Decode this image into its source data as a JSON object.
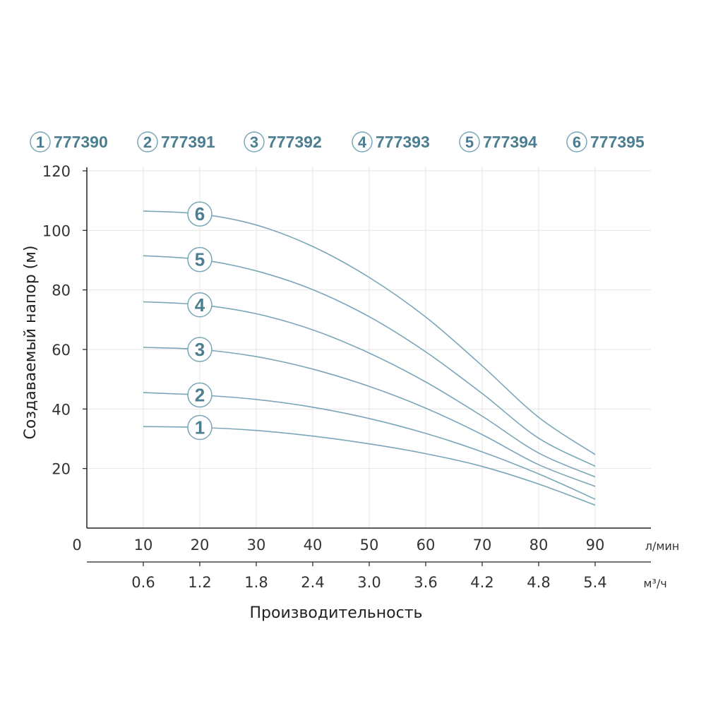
{
  "chart_data": {
    "type": "line",
    "legend": [
      {
        "num": "1",
        "code": "777390"
      },
      {
        "num": "2",
        "code": "777391"
      },
      {
        "num": "3",
        "code": "777392"
      },
      {
        "num": "4",
        "code": "777393"
      },
      {
        "num": "5",
        "code": "777394"
      },
      {
        "num": "6",
        "code": "777395"
      }
    ],
    "ylabel": "Создаваемый напор (м)",
    "xlabel": "Производительность",
    "origin_label": "0",
    "x_unit_lmin": "л/мин",
    "x_unit_m3h": "м³/ч",
    "yticks": [
      "20",
      "40",
      "60",
      "80",
      "100",
      "120"
    ],
    "xticks_lmin": [
      "10",
      "20",
      "30",
      "40",
      "50",
      "60",
      "70",
      "80",
      "90"
    ],
    "xticks_m3h": [
      "0.6",
      "1.2",
      "1.8",
      "2.4",
      "3.0",
      "3.6",
      "4.2",
      "4.8",
      "5.4"
    ],
    "xlim": [
      0,
      90
    ],
    "ylim": [
      0,
      120
    ],
    "x": [
      10,
      20,
      30,
      40,
      50,
      60,
      70,
      80,
      90
    ],
    "series": [
      {
        "label": "1",
        "values": [
          34.1,
          33.8,
          32.8,
          30.9,
          28.3,
          25.0,
          20.7,
          14.8,
          7.7
        ]
      },
      {
        "label": "2",
        "values": [
          45.5,
          44.7,
          43.2,
          40.6,
          36.8,
          31.8,
          25.6,
          18.2,
          9.7
        ]
      },
      {
        "label": "3",
        "values": [
          60.7,
          60.0,
          57.6,
          53.4,
          47.6,
          40.3,
          31.4,
          21.3,
          14.0
        ]
      },
      {
        "label": "4",
        "values": [
          76.0,
          75.0,
          72.0,
          66.6,
          58.8,
          49.1,
          37.6,
          25.2,
          17.2
        ]
      },
      {
        "label": "5",
        "values": [
          91.5,
          90.2,
          86.4,
          80.1,
          71.0,
          59.2,
          45.2,
          30.2,
          20.8
        ]
      },
      {
        "label": "6",
        "values": [
          106.5,
          105.5,
          101.8,
          94.6,
          84.2,
          70.9,
          54.5,
          37.2,
          24.7
        ]
      }
    ],
    "line_color": "#7aa6b8",
    "label_color": "#4a7e90",
    "grid": true,
    "grid_color": "#e4e4e4"
  }
}
